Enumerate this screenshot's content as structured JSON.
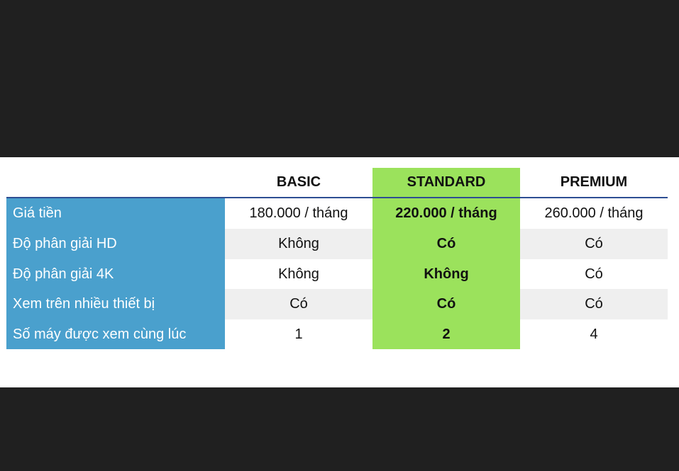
{
  "table": {
    "columns": [
      "BASIC",
      "STANDARD",
      "PREMIUM"
    ],
    "rows": [
      {
        "label": "Giá tiền",
        "values": [
          "180.000 / tháng",
          "220.000 / tháng",
          "260.000 / tháng"
        ]
      },
      {
        "label": "Độ phân giải HD",
        "values": [
          "Không",
          "Có",
          "Có"
        ]
      },
      {
        "label": "Độ phân giải 4K",
        "values": [
          "Không",
          "Không",
          "Có"
        ]
      },
      {
        "label": "Xem trên nhiều thiết bị",
        "values": [
          "Có",
          "Có",
          "Có"
        ]
      },
      {
        "label": "Số máy được xem cùng lúc",
        "values": [
          "1",
          "2",
          "4"
        ]
      }
    ]
  },
  "colors": {
    "label_column": "#4aa0cd",
    "highlight_column": "#9be25c",
    "header_rule": "#2d4e93",
    "row_shade": "#efefef",
    "background": "#202020"
  }
}
